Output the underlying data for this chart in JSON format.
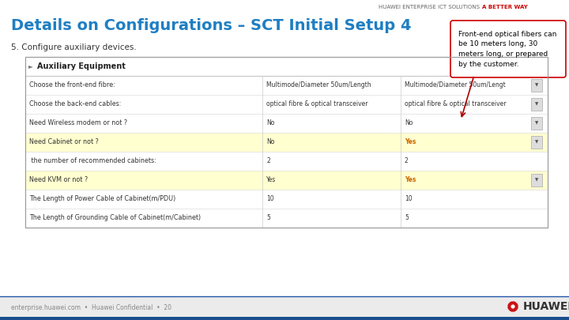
{
  "title": "Details on Configurations – SCT Initial Setup 4",
  "title_color": "#1F7EC2",
  "bg_color": "#EBEBEB",
  "header_text": "HUAWEI ENTERPRISE ICT SOLUTIONS",
  "header_highlight": "A BETTER WAY",
  "header_highlight_color": "#CC0000",
  "header_normal_color": "#666666",
  "callout_text": "Front-end optical fibers can\nbe 10 meters long, 30\nmeters long, or prepared\nby the customer.",
  "step_text": "5. Configure auxiliary devices.",
  "footer_text": "enterprise.huawei.com  •  Huawei Confidential  •  20",
  "table_header": "Auxiliary Equipment",
  "table_rows": [
    [
      "Choose the front-end fibre:",
      "Multimode/Diameter 50um/Length",
      "Multimode/Diameter 50um/Lengt",
      true,
      false
    ],
    [
      "Choose the back-end cables:",
      "optical fibre & optical transceiver",
      "optical fibre & optical transceiver",
      true,
      false
    ],
    [
      "Need Wireless modem or not ?",
      "No",
      "No",
      true,
      false
    ],
    [
      "Need Cabinet or not ?",
      "No",
      "Yes",
      true,
      true
    ],
    [
      " the number of recommended cabinets:",
      "2",
      "2",
      false,
      false
    ],
    [
      "Need KVM or not ?",
      "Yes",
      "Yes",
      true,
      true
    ],
    [
      "The Length of Power Cable of Cabinet(m/PDU)",
      "10",
      "10",
      false,
      false
    ],
    [
      "The Length of Grounding Cable of Cabinet(m/Cabinet)",
      "5",
      "5",
      false,
      false
    ]
  ],
  "row_highlight_color": "#FFFFD0",
  "row_normal_color": "#FFFFFF",
  "table_border_color": "#999999",
  "col_divider_color": "#CCCCCC",
  "row_divider_color": "#DDDDDD",
  "yes_highlight_color": "#CC6600",
  "footer_line_color": "#2255AA",
  "footer_text_color": "#888888",
  "huawei_blue": "#1A4E8C"
}
